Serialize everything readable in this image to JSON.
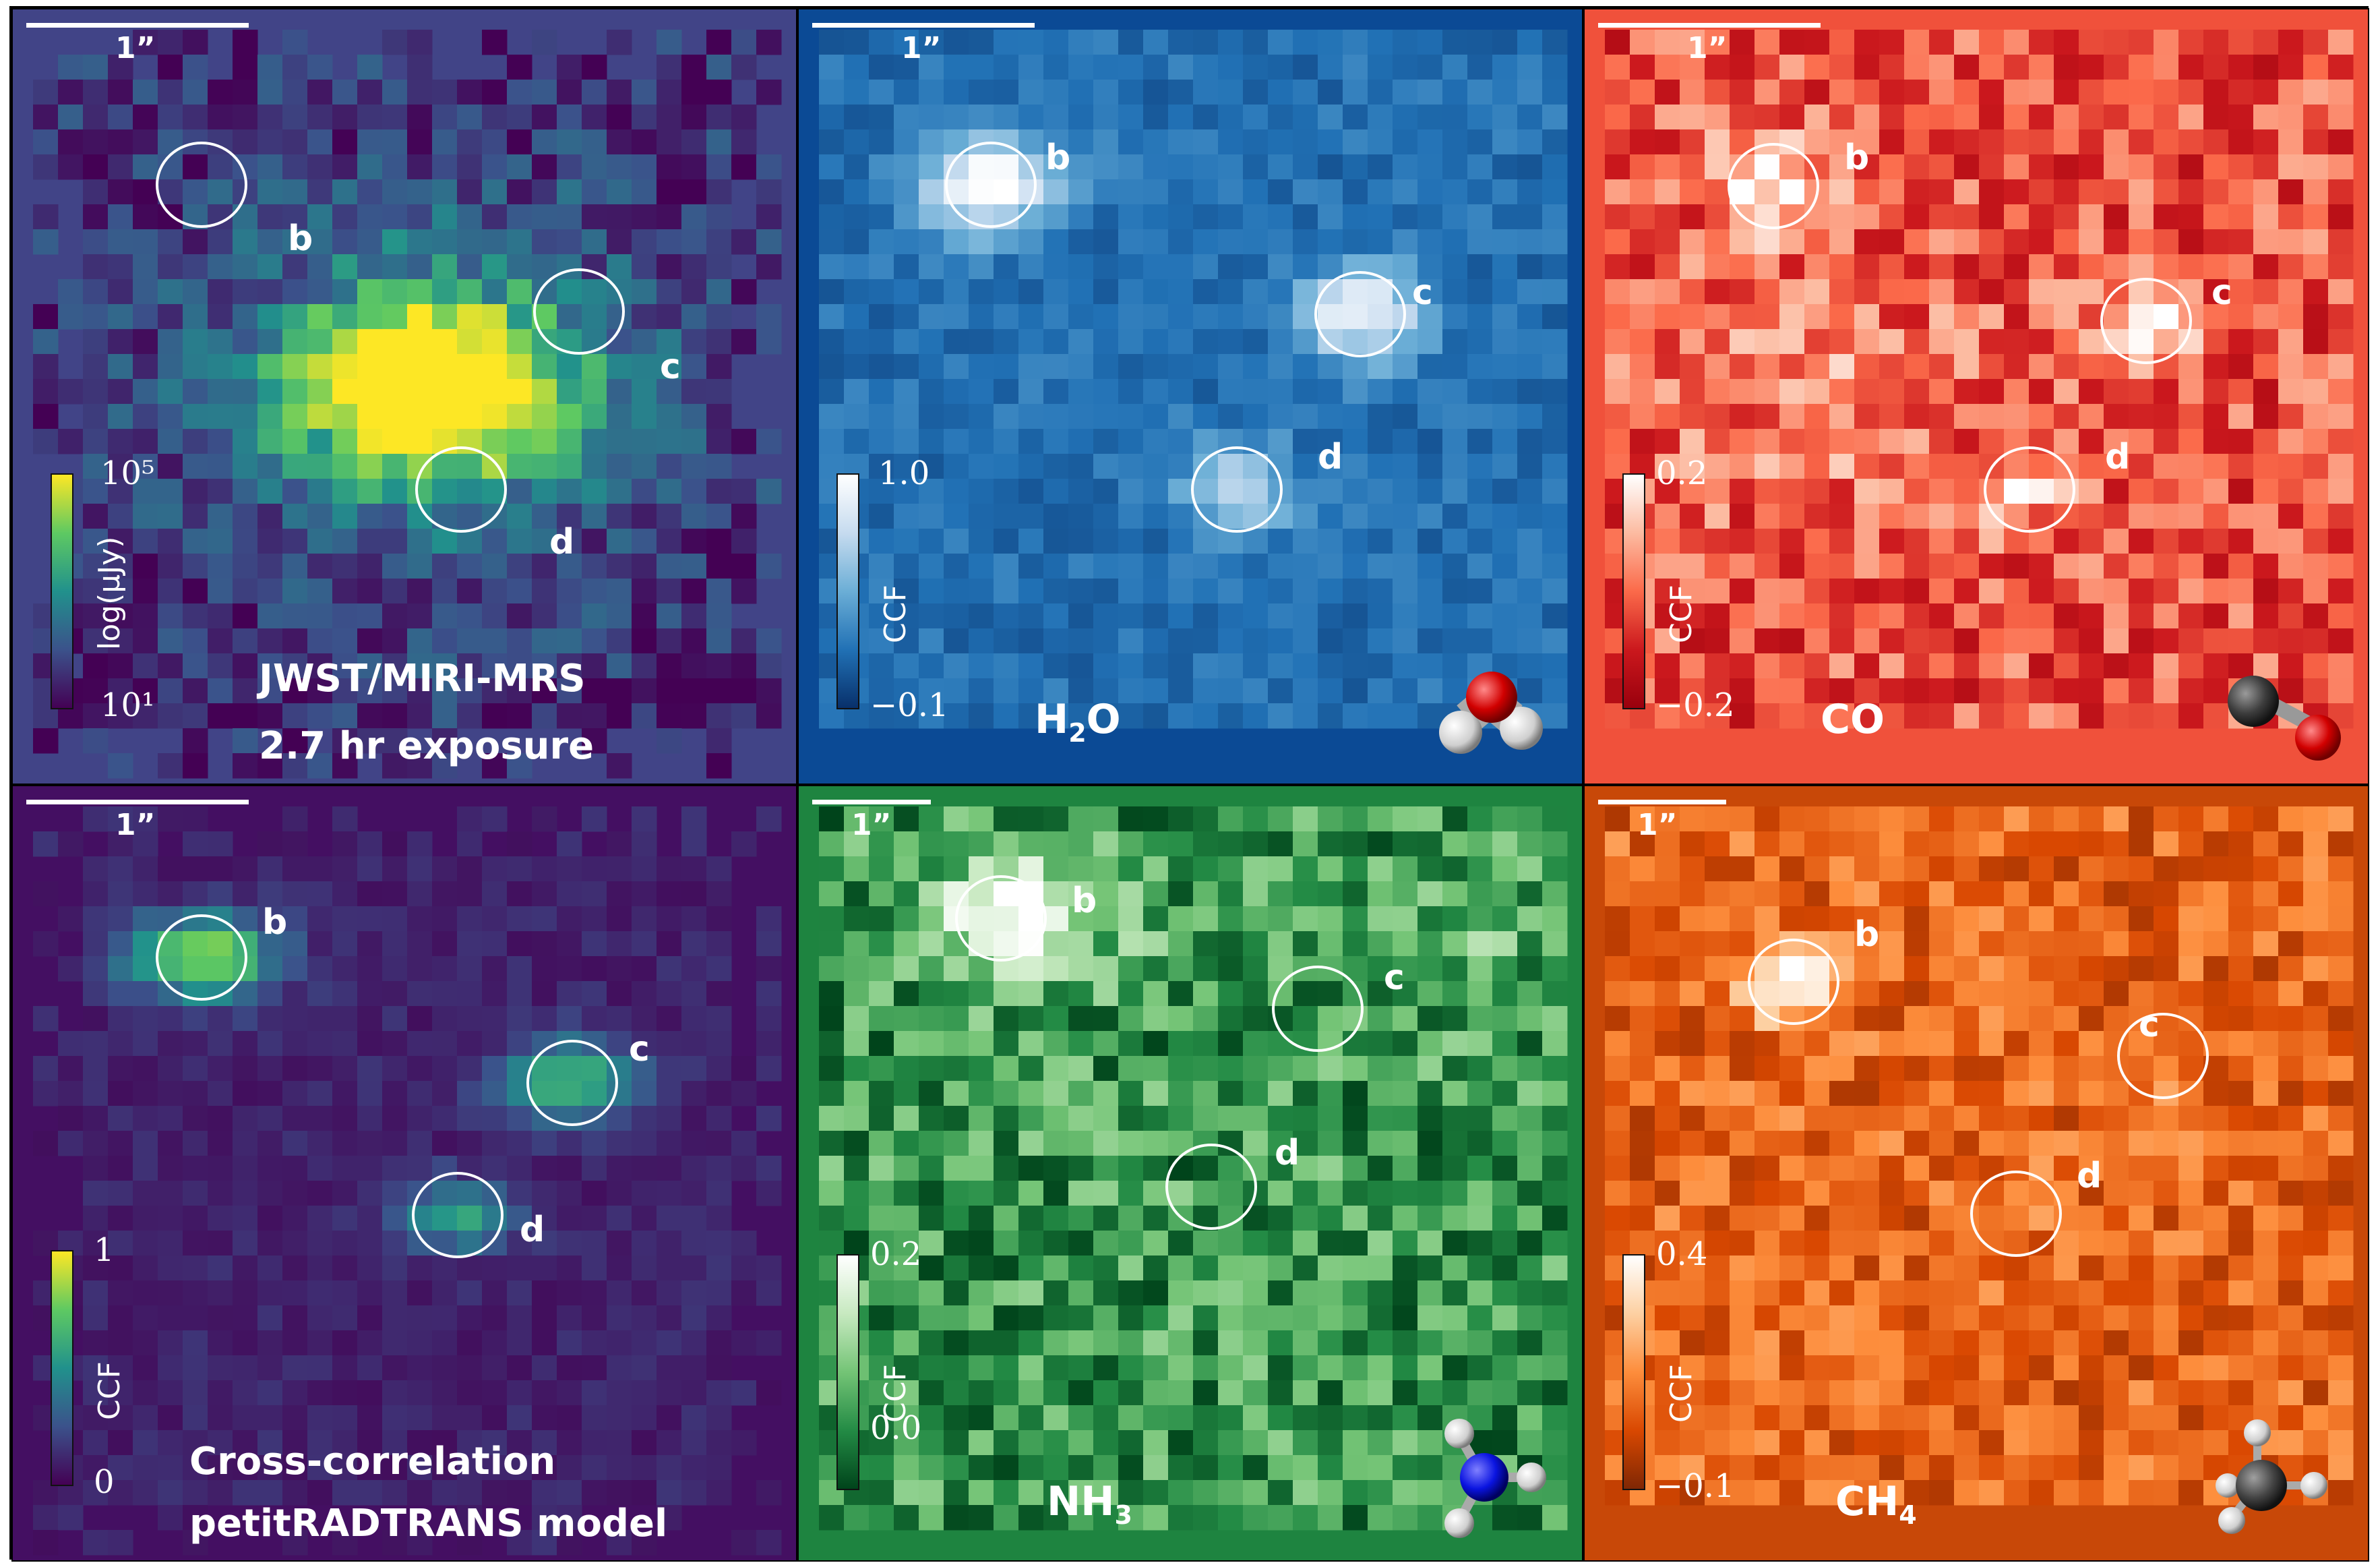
{
  "panels": [
    {
      "id": "flux",
      "bg": "#414487",
      "scalebar_label": "1”",
      "colorbar": {
        "top": "10⁵",
        "bottom": "10¹",
        "title": "log(μJy)",
        "colors": [
          "#440154",
          "#3b528b",
          "#21918c",
          "#5ec962",
          "#fde725"
        ]
      },
      "points": {
        "b": "b",
        "c": "c",
        "d": "d"
      },
      "caption": [
        "JWST/MIRI-MRS",
        "2.7 hr exposure"
      ]
    },
    {
      "id": "h2o",
      "bg": "#0b4a95",
      "scalebar_label": "1”",
      "colorbar": {
        "top": "1.0",
        "bottom": "−0.1",
        "title": "CCF",
        "colors": [
          "#08306b",
          "#2171b5",
          "#6baed6",
          "#c6dbef",
          "#ffffff"
        ]
      },
      "points": {
        "b": "b",
        "c": "c",
        "d": "d"
      },
      "molecule": {
        "main": "H",
        "sub": "2",
        "tail": "O"
      }
    },
    {
      "id": "co",
      "bg": "#f0513b",
      "scalebar_label": "1”",
      "colorbar": {
        "top": "0.2",
        "bottom": "−0.2",
        "title": "CCF",
        "colors": [
          "#99000d",
          "#cb181d",
          "#fb6a4a",
          "#fcbba1",
          "#ffffff"
        ]
      },
      "points": {
        "b": "b",
        "c": "c",
        "d": "d"
      },
      "molecule": {
        "main": "CO",
        "sub": "",
        "tail": ""
      }
    },
    {
      "id": "model",
      "bg": "#440f62",
      "scalebar_label": "1”",
      "colorbar": {
        "top": "1",
        "bottom": "0",
        "title": "CCF",
        "colors": [
          "#440154",
          "#3b528b",
          "#21918c",
          "#5ec962",
          "#fde725"
        ]
      },
      "points": {
        "b": "b",
        "c": "c",
        "d": "d"
      },
      "caption": [
        "Cross-correlation",
        "petitRADTRANS model"
      ]
    },
    {
      "id": "nh3",
      "bg": "#1e8440",
      "scalebar_label": "1”",
      "colorbar": {
        "top": "0.2",
        "bottom": "0.0",
        "title": "CCF",
        "colors": [
          "#00441b",
          "#238b45",
          "#74c476",
          "#c7e9c0",
          "#ffffff"
        ]
      },
      "points": {
        "b": "b",
        "c": "c",
        "d": "d"
      },
      "molecule": {
        "main": "NH",
        "sub": "3",
        "tail": ""
      }
    },
    {
      "id": "ch4",
      "bg": "#c84808",
      "scalebar_label": "1”",
      "colorbar": {
        "top": "0.4",
        "bottom": "−0.1",
        "title": "CCF",
        "colors": [
          "#7f2704",
          "#d94801",
          "#fd8d3c",
          "#fdd0a2",
          "#ffffff"
        ]
      },
      "points": {
        "b": "b",
        "c": "c",
        "d": "d"
      },
      "molecule": {
        "main": "CH",
        "sub": "4",
        "tail": ""
      }
    }
  ]
}
